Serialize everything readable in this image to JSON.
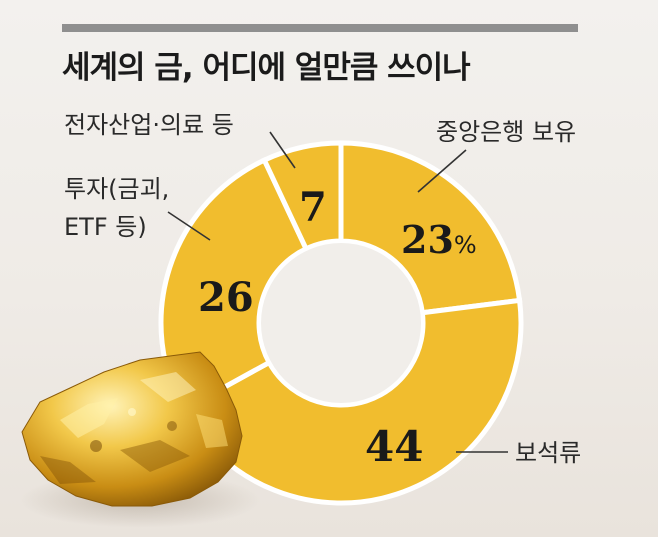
{
  "header": {
    "title": "세계의 금, 어디에 얼만큼 쓰이나"
  },
  "colors": {
    "ring": "#f1bd2e",
    "ring_edge": "#e2a818",
    "separator": "#ffffff",
    "rule": "#8f8f8f",
    "text": "#1b1b1b"
  },
  "chart_data": {
    "type": "pie",
    "donut": true,
    "start": "top, clockwise",
    "unit": "%",
    "slices": [
      {
        "label": "중앙은행 보유",
        "value": 23,
        "display": "23",
        "suffix": "%"
      },
      {
        "label": "보석류",
        "value": 44,
        "display": "44",
        "suffix": ""
      },
      {
        "label": "투자(금괴, ETF 등)",
        "label_lines": [
          "투자(금괴,",
          "ETF 등)"
        ],
        "value": 26,
        "display": "26",
        "suffix": ""
      },
      {
        "label": "전자산업·의료 등",
        "value": 7,
        "display": "7",
        "suffix": ""
      }
    ]
  },
  "decor": {
    "image": "gold-nugget"
  }
}
